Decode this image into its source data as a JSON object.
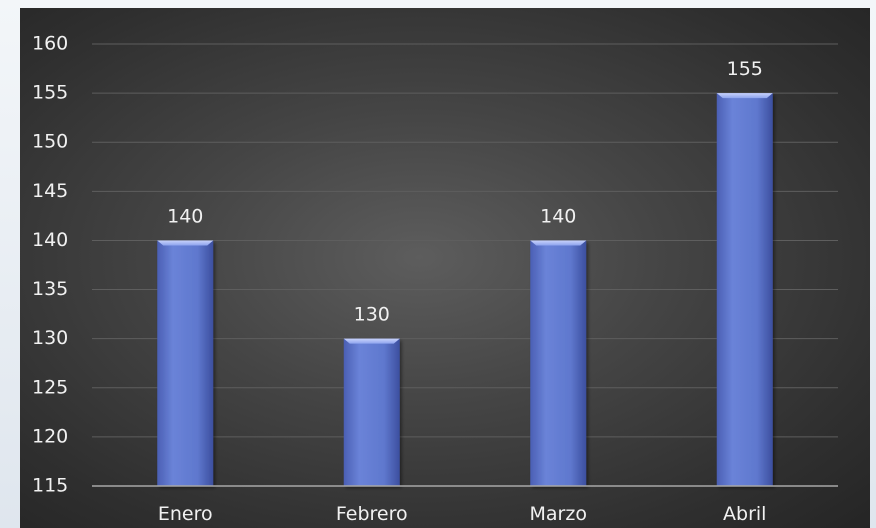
{
  "chart_data": {
    "type": "bar",
    "categories": [
      "Enero",
      "Febrero",
      "Marzo",
      "Abril"
    ],
    "values": [
      140,
      130,
      140,
      155
    ],
    "data_labels": [
      "140",
      "130",
      "140",
      "155"
    ],
    "ylim": [
      115,
      160
    ],
    "yticks": [
      115,
      120,
      125,
      130,
      135,
      140,
      145,
      150,
      155,
      160
    ],
    "ytick_labels": [
      "115",
      "120",
      "125",
      "130",
      "135",
      "140",
      "145",
      "150",
      "155",
      "160"
    ],
    "grid": true,
    "legend": "none",
    "colors": {
      "background": "#3b3b3b",
      "bar": "#5a72c8",
      "bar_top": "#a9b8ef",
      "grid": "#5e5e5e",
      "text": "#f1f1f1"
    }
  }
}
